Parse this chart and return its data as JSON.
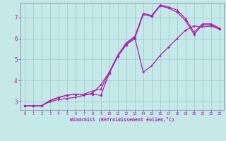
{
  "xlabel": "Windchill (Refroidissement éolien,°C)",
  "bg_color": "#c5e8e8",
  "line_color": "#aa22aa",
  "grid_color": "#99cccc",
  "xlim": [
    -0.5,
    23.5
  ],
  "ylim": [
    2.6,
    7.7
  ],
  "xticks": [
    0,
    1,
    2,
    3,
    4,
    5,
    6,
    7,
    8,
    9,
    10,
    11,
    12,
    13,
    14,
    15,
    16,
    17,
    18,
    19,
    20,
    21,
    22,
    23
  ],
  "yticks": [
    3,
    4,
    5,
    6,
    7
  ],
  "line1_x": [
    0,
    1,
    2,
    3,
    4,
    5,
    6,
    7,
    8,
    9,
    10,
    11,
    12,
    13,
    14,
    15,
    16,
    17,
    18,
    19,
    20,
    21,
    22,
    23
  ],
  "line1_y": [
    2.8,
    2.8,
    2.8,
    3.05,
    3.2,
    3.3,
    3.35,
    3.35,
    3.35,
    3.3,
    4.35,
    5.15,
    5.7,
    6.0,
    7.15,
    7.05,
    7.55,
    7.45,
    7.25,
    6.85,
    6.2,
    6.65,
    6.65,
    6.45
  ],
  "line2_x": [
    0,
    1,
    2,
    3,
    4,
    5,
    6,
    7,
    8,
    9,
    10,
    11,
    12,
    13,
    14,
    15,
    16,
    17,
    18,
    19,
    20,
    21,
    22,
    23
  ],
  "line2_y": [
    2.8,
    2.8,
    2.8,
    3.0,
    3.1,
    3.15,
    3.2,
    3.3,
    3.4,
    3.8,
    4.4,
    5.2,
    5.75,
    6.05,
    4.4,
    4.7,
    5.2,
    5.6,
    6.0,
    6.4,
    6.6,
    6.55,
    6.6,
    6.45
  ],
  "line3_x": [
    0,
    1,
    2,
    3,
    4,
    5,
    6,
    7,
    8,
    9,
    10,
    11,
    12,
    13,
    14,
    15,
    16,
    17,
    18,
    19,
    20,
    21,
    22,
    23
  ],
  "line3_y": [
    2.8,
    2.8,
    2.8,
    3.05,
    3.2,
    3.3,
    3.35,
    3.35,
    3.5,
    3.6,
    4.4,
    5.2,
    5.8,
    6.1,
    7.2,
    7.1,
    7.6,
    7.5,
    7.35,
    6.95,
    6.3,
    6.7,
    6.7,
    6.5
  ]
}
